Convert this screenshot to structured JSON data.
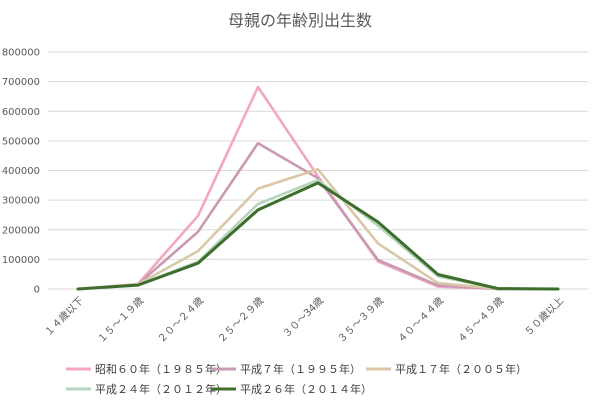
{
  "chart_data": {
    "type": "line",
    "title": "母親の年齢別出生数",
    "categories": [
      "１４歳以下",
      "１５～１９歳",
      "２０～２４歳",
      "２５～２９歳",
      "３０～34歳",
      "３５～３９歳",
      "４０～４４歳",
      "４５～４９歳",
      "５０歳以上"
    ],
    "ylim": [
      0,
      800000
    ],
    "yticks": [
      "0",
      "100000",
      "200000",
      "300000",
      "400000",
      "500000",
      "600000",
      "700000",
      "800000"
    ],
    "grid": true,
    "legend_position": "bottom",
    "series": [
      {
        "name": "昭和６０年（１９８５年）",
        "color": "#f4a6c0",
        "values": [
          0,
          17000,
          247000,
          682000,
          380000,
          93000,
          8000,
          300,
          0
        ]
      },
      {
        "name": "平成７年（１９９５年）",
        "color": "#c999b3",
        "values": [
          0,
          16000,
          193000,
          492000,
          374000,
          98000,
          12000,
          400,
          0
        ]
      },
      {
        "name": "平成１７年（２００５年）",
        "color": "#d9c7a7",
        "values": [
          0,
          16000,
          128000,
          339000,
          404000,
          154000,
          20000,
          600,
          0
        ]
      },
      {
        "name": "平成２４年（２０１２年）",
        "color": "#b7d5bd",
        "values": [
          0,
          13000,
          92000,
          287000,
          368000,
          214000,
          43000,
          1200,
          0
        ]
      },
      {
        "name": "平成２６年（２０１４年）",
        "color": "#3c6e2c",
        "values": [
          0,
          13000,
          87000,
          267000,
          358000,
          226000,
          49000,
          1400,
          0
        ]
      }
    ]
  }
}
